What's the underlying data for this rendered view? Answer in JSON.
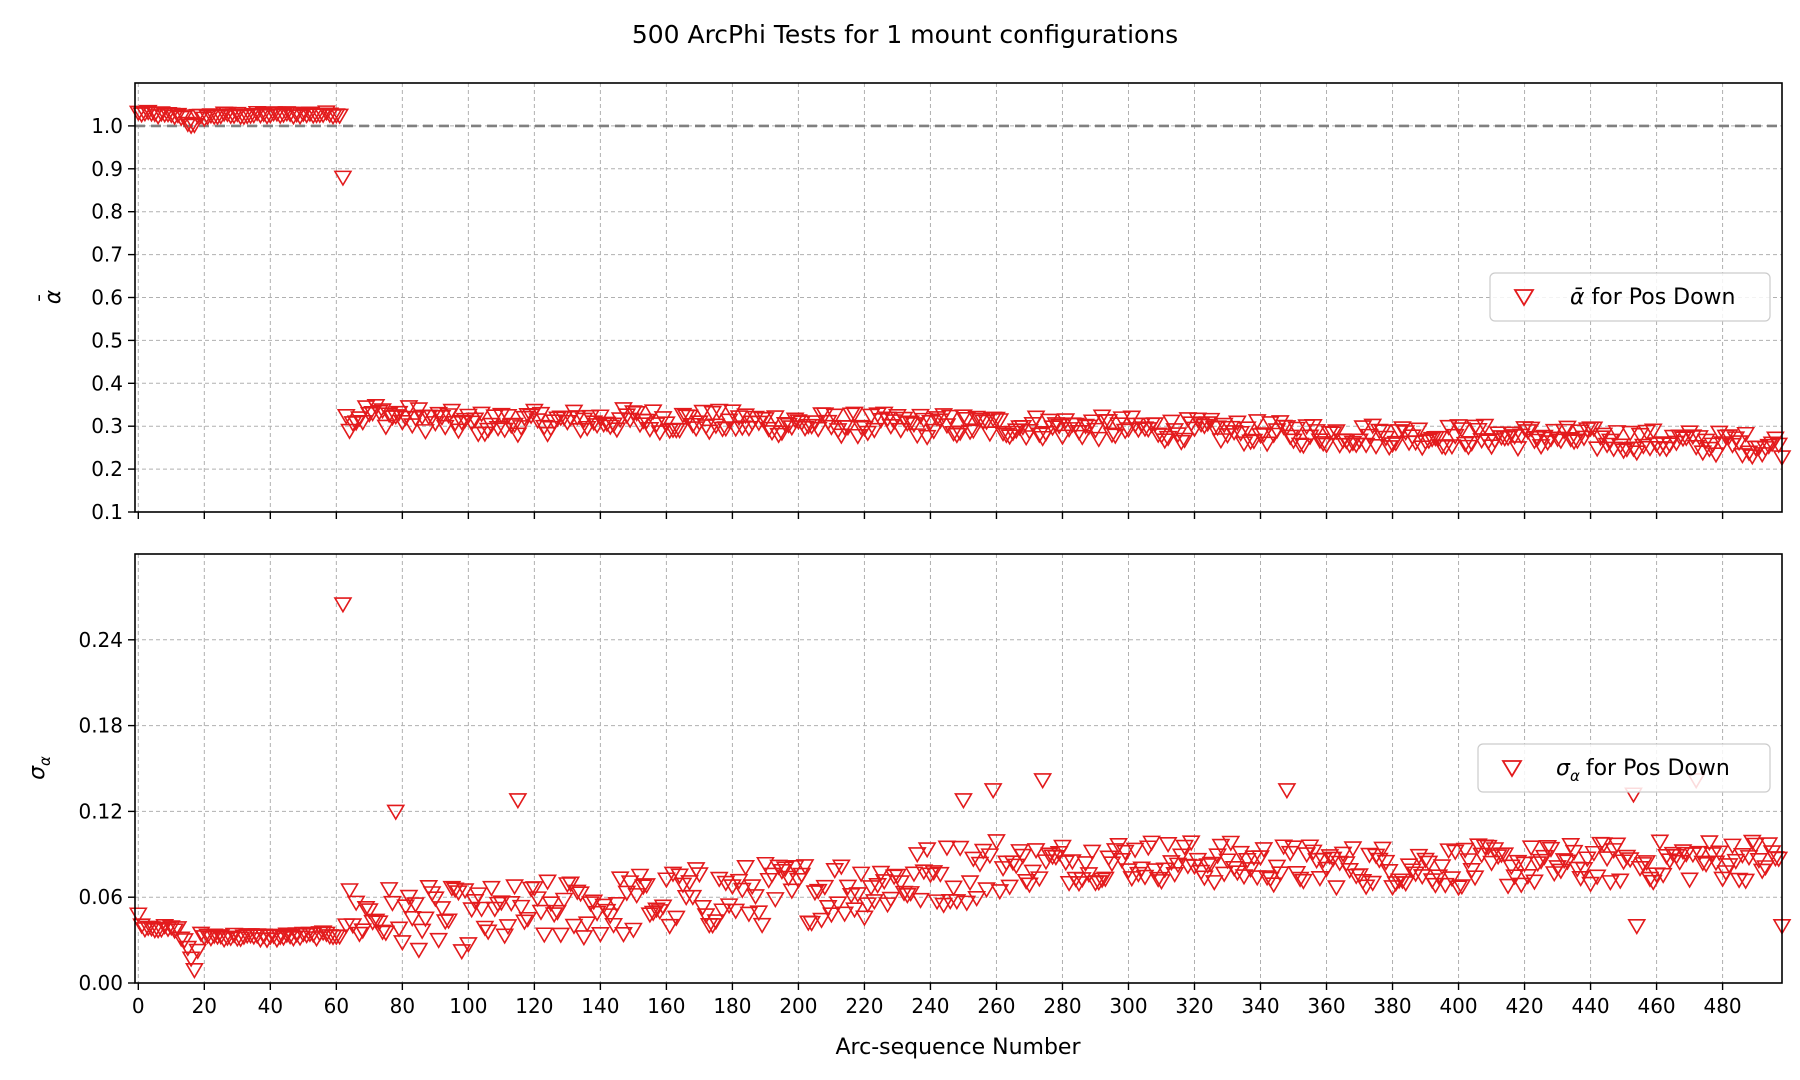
{
  "figure": {
    "title": "500 ArcPhi Tests for 1 mount configurations",
    "xlabel": "Arc-sequence Number"
  },
  "colors": {
    "marker": "#e31a1c",
    "grid": "#b0b0b0",
    "reference": "#808080"
  },
  "chart_data": [
    {
      "type": "scatter",
      "panel": "top",
      "ylabel_base": "α",
      "ylabel_accent": "¯",
      "legend": {
        "placement": "center-right",
        "entries": [
          {
            "symbol": "ᾱ",
            "text": "for Pos Down"
          }
        ]
      },
      "series_name": "ᾱ for Pos Down",
      "marker": "triangle-down-open",
      "xlim": [
        -1,
        498
      ],
      "ylim": [
        0.1,
        1.1
      ],
      "yticks": [
        "0.1",
        "0.2",
        "0.3",
        "0.4",
        "0.5",
        "0.6",
        "0.7",
        "0.8",
        "0.9",
        "1.0"
      ],
      "grid": true,
      "reference_line": {
        "y": 1.0,
        "style": "dashed"
      },
      "trend_points": [
        {
          "x": 0,
          "y": 1.03
        },
        {
          "x": 14,
          "y": 1.022
        },
        {
          "x": 15,
          "y": 1.008
        },
        {
          "x": 17,
          "y": 1.0
        },
        {
          "x": 18,
          "y": 1.02
        },
        {
          "x": 25,
          "y": 1.025
        },
        {
          "x": 61,
          "y": 1.028
        },
        {
          "x": 62,
          "y": 0.88
        },
        {
          "x": 63,
          "y": 0.315
        },
        {
          "x": 70,
          "y": 0.33
        },
        {
          "x": 100,
          "y": 0.305
        },
        {
          "x": 150,
          "y": 0.315
        },
        {
          "x": 200,
          "y": 0.305
        },
        {
          "x": 260,
          "y": 0.3
        },
        {
          "x": 300,
          "y": 0.295
        },
        {
          "x": 360,
          "y": 0.28
        },
        {
          "x": 420,
          "y": 0.275
        },
        {
          "x": 480,
          "y": 0.26
        },
        {
          "x": 499,
          "y": 0.255
        }
      ],
      "point_count": 500
    },
    {
      "type": "scatter",
      "panel": "bottom",
      "ylabel_base": "σ",
      "ylabel_sub": "α",
      "legend": {
        "placement": "center-right",
        "entries": [
          {
            "symbol": "σ",
            "sub": "α",
            "text": "for Pos Down"
          }
        ]
      },
      "series_name": "σα for Pos Down",
      "marker": "triangle-down-open",
      "xlim": [
        -1,
        498
      ],
      "ylim": [
        0.0,
        0.3
      ],
      "yticks": [
        "0.00",
        "0.06",
        "0.12",
        "0.18",
        "0.24"
      ],
      "xticks": [
        "0",
        "20",
        "40",
        "60",
        "80",
        "100",
        "120",
        "140",
        "160",
        "180",
        "200",
        "220",
        "240",
        "260",
        "280",
        "300",
        "320",
        "340",
        "360",
        "380",
        "400",
        "420",
        "440",
        "460",
        "480"
      ],
      "grid": true,
      "trend_points": [
        {
          "x": 0,
          "y": 0.05
        },
        {
          "x": 1,
          "y": 0.04
        },
        {
          "x": 12,
          "y": 0.037
        },
        {
          "x": 15,
          "y": 0.025
        },
        {
          "x": 17,
          "y": 0.01
        },
        {
          "x": 19,
          "y": 0.033
        },
        {
          "x": 40,
          "y": 0.032
        },
        {
          "x": 61,
          "y": 0.034
        },
        {
          "x": 62,
          "y": 0.265
        },
        {
          "x": 63,
          "y": 0.045
        },
        {
          "x": 100,
          "y": 0.042
        },
        {
          "x": 160,
          "y": 0.055
        },
        {
          "x": 220,
          "y": 0.065
        },
        {
          "x": 262,
          "y": 0.08
        },
        {
          "x": 300,
          "y": 0.085
        },
        {
          "x": 360,
          "y": 0.08
        },
        {
          "x": 420,
          "y": 0.08
        },
        {
          "x": 480,
          "y": 0.085
        },
        {
          "x": 499,
          "y": 0.085
        }
      ],
      "outliers": [
        {
          "x": 78,
          "y": 0.12
        },
        {
          "x": 115,
          "y": 0.128
        },
        {
          "x": 250,
          "y": 0.128
        },
        {
          "x": 259,
          "y": 0.135
        },
        {
          "x": 274,
          "y": 0.142
        },
        {
          "x": 348,
          "y": 0.135
        },
        {
          "x": 453,
          "y": 0.132
        },
        {
          "x": 472,
          "y": 0.142
        },
        {
          "x": 498,
          "y": 0.04
        },
        {
          "x": 454,
          "y": 0.04
        }
      ],
      "point_count": 500
    }
  ]
}
